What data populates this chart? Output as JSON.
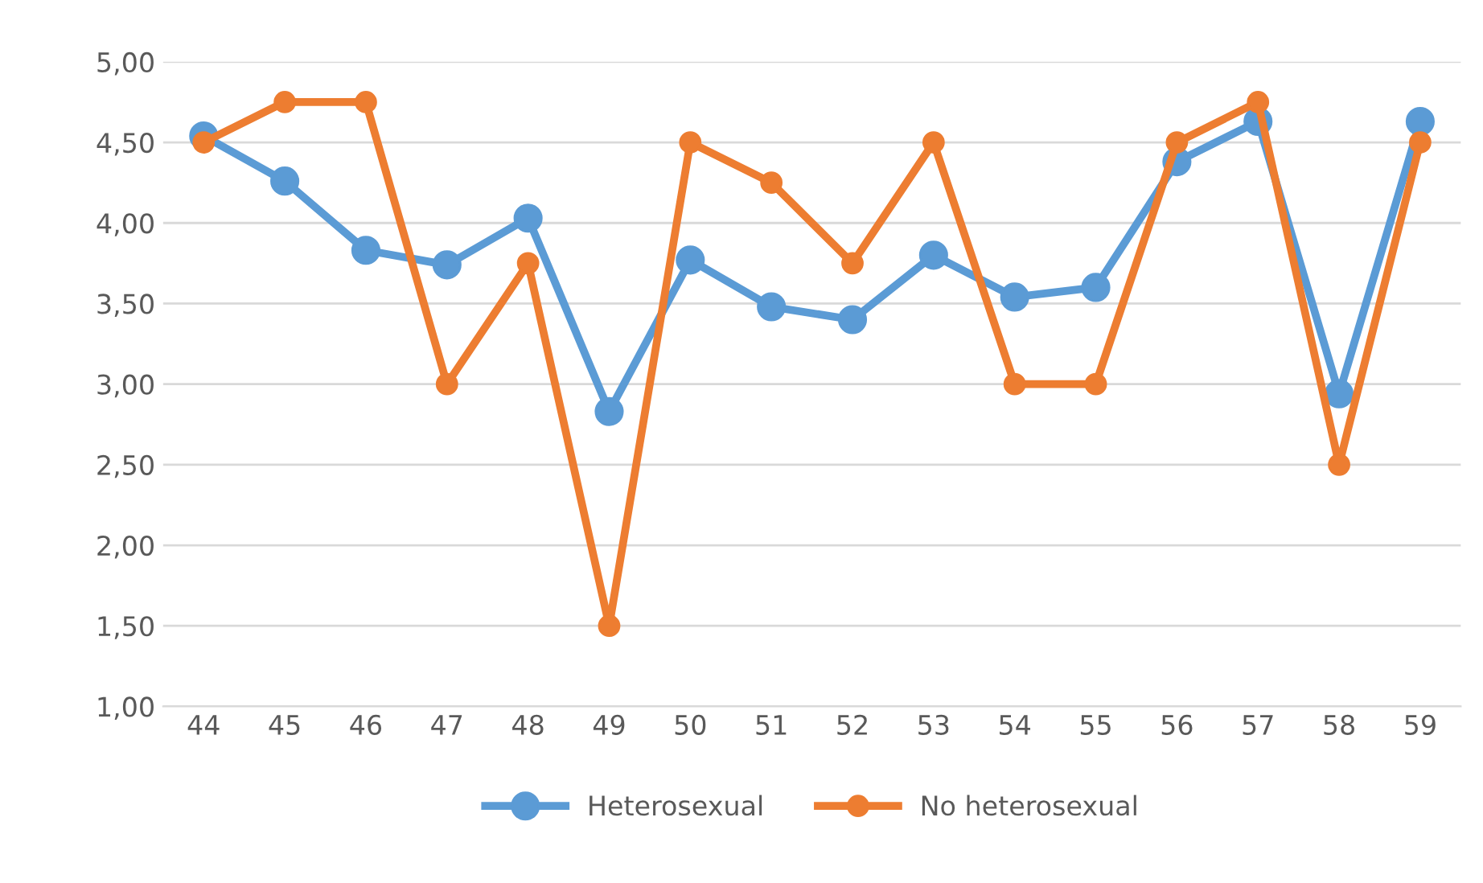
{
  "chart_data": {
    "type": "line",
    "categories": [
      "44",
      "45",
      "46",
      "47",
      "48",
      "49",
      "50",
      "51",
      "52",
      "53",
      "54",
      "55",
      "56",
      "57",
      "58",
      "59"
    ],
    "series": [
      {
        "name": "Heterosexual",
        "color": "#5b9bd5",
        "values": [
          4.54,
          4.26,
          3.83,
          3.74,
          4.03,
          2.83,
          3.77,
          3.48,
          3.4,
          3.8,
          3.54,
          3.6,
          4.38,
          4.63,
          2.94,
          4.63
        ]
      },
      {
        "name": "No heterosexual",
        "color": "#ed7d31",
        "values": [
          4.5,
          4.75,
          4.75,
          3.0,
          3.75,
          1.5,
          4.5,
          4.25,
          3.75,
          4.5,
          3.0,
          3.0,
          4.5,
          4.75,
          2.5,
          4.5
        ]
      }
    ],
    "ylim": [
      1,
      5
    ],
    "yticks": [
      {
        "value": 1,
        "label": "1,00"
      },
      {
        "value": 1.5,
        "label": "1,50"
      },
      {
        "value": 2,
        "label": "2,00"
      },
      {
        "value": 2.5,
        "label": "2,50"
      },
      {
        "value": 3,
        "label": "3,00"
      },
      {
        "value": 3.5,
        "label": "3,50"
      },
      {
        "value": 4,
        "label": "4,00"
      },
      {
        "value": 4.5,
        "label": "4,50"
      },
      {
        "value": 5,
        "label": "5,00"
      }
    ],
    "grid": "y",
    "legend": "bottom",
    "marker": "circle",
    "line_style": "solid"
  }
}
